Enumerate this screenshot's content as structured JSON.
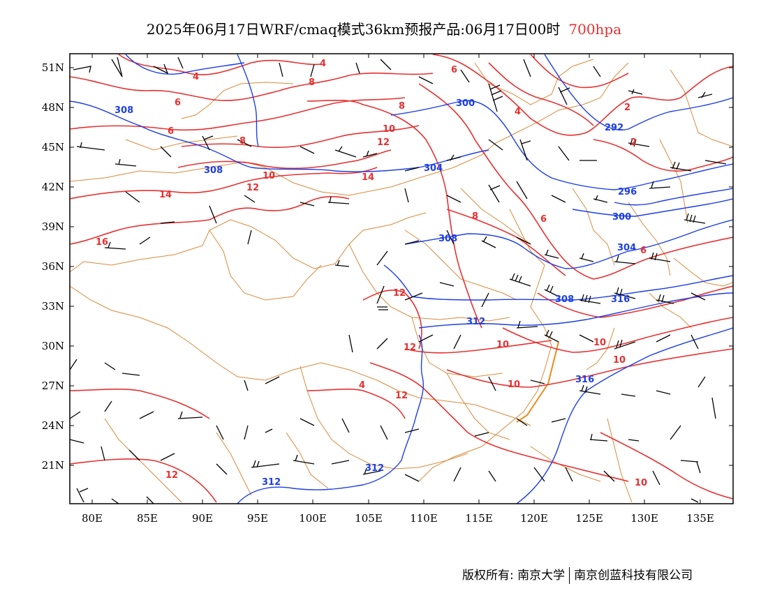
{
  "title": {
    "main": "2025年06月17日WRF/cmaq模式36km预报产品:06月17日00时",
    "level": "700hpa"
  },
  "colors": {
    "temperature": "#e83030",
    "height": "#1c3ee8",
    "borders": "#d98a3a",
    "wind": "#000000",
    "level_text": "#e83030"
  },
  "axes": {
    "lat_ticks": [
      "51N",
      "48N",
      "45N",
      "42N",
      "39N",
      "36N",
      "33N",
      "30N",
      "27N",
      "24N",
      "21N"
    ],
    "lon_ticks": [
      "80E",
      "85E",
      "90E",
      "95E",
      "100E",
      "105E",
      "110E",
      "115E",
      "120E",
      "125E",
      "130E",
      "135E"
    ]
  },
  "temperature_labels": [
    "4",
    "4",
    "6",
    "6",
    "6",
    "8",
    "8",
    "8",
    "10",
    "12",
    "14",
    "12",
    "14",
    "10",
    "16",
    "8",
    "6",
    "12",
    "12",
    "12",
    "4",
    "2",
    "2",
    "4",
    "6",
    "10",
    "10",
    "10",
    "10",
    "10",
    "12"
  ],
  "height_labels": [
    "308",
    "300",
    "292",
    "308",
    "304",
    "296",
    "300",
    "304",
    "308",
    "308",
    "312",
    "316",
    "316",
    "312",
    "312"
  ],
  "footer": {
    "left": "版权所有: 南京大学",
    "right": "南京创蓝科技有限公司"
  }
}
